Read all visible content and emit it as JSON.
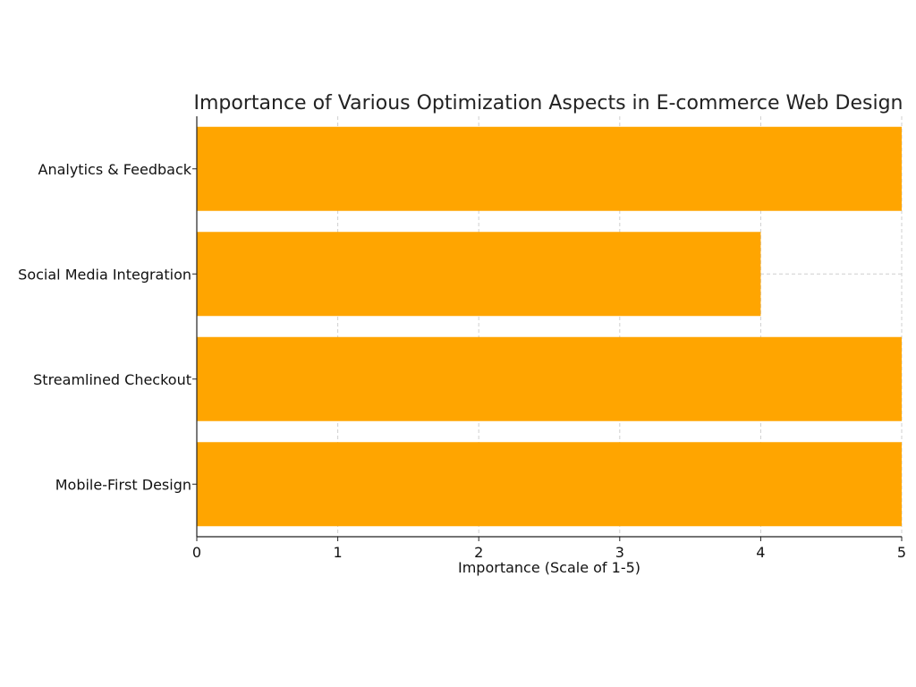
{
  "chart_data": {
    "type": "bar",
    "orientation": "horizontal",
    "title": "Importance of Various Optimization Aspects in E-commerce Web Design",
    "xlabel": "Importance (Scale of 1-5)",
    "ylabel": "",
    "categories": [
      "Mobile-First Design",
      "Streamlined Checkout",
      "Social Media Integration",
      "Analytics & Feedback"
    ],
    "values": [
      5,
      5,
      4,
      5
    ],
    "xlim": [
      0,
      5
    ],
    "xticks": [
      "0",
      "1",
      "2",
      "3",
      "4",
      "5"
    ],
    "grid": true,
    "bar_color": "#FFA500"
  }
}
